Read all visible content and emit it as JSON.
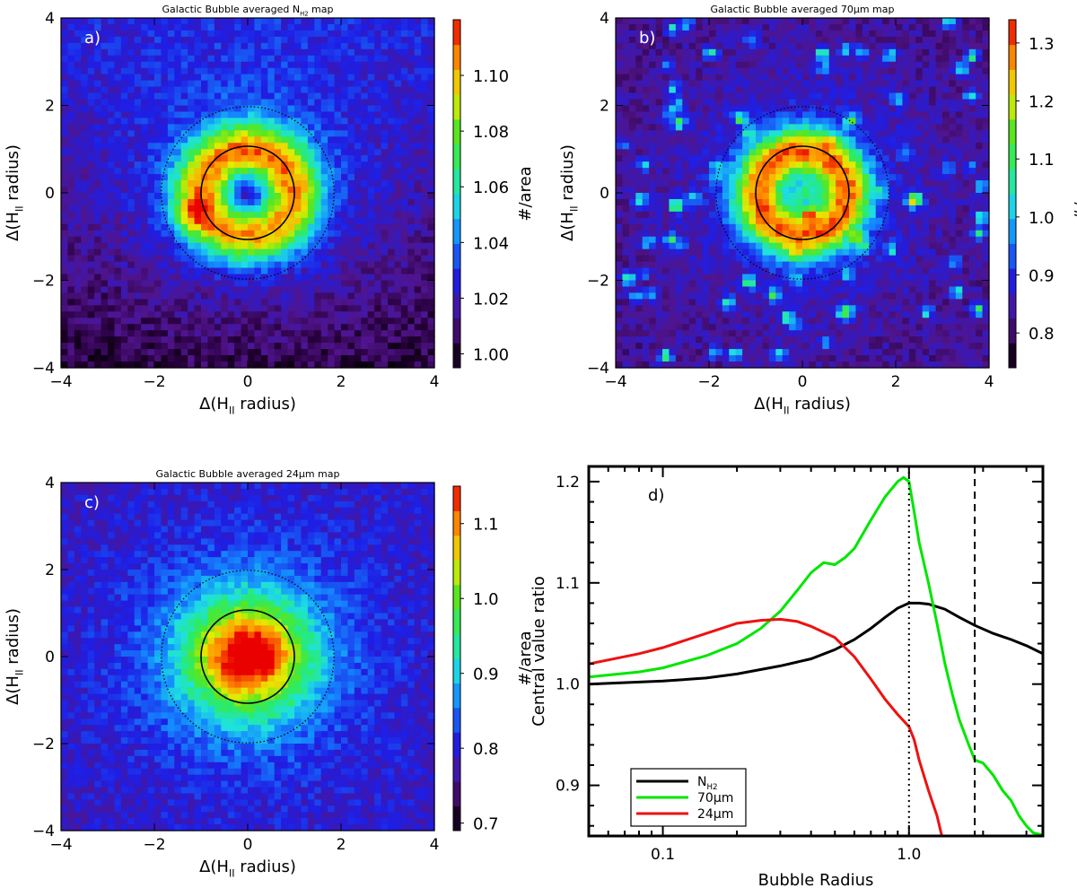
{
  "chart_data": [
    {
      "id": "a",
      "type": "heatmap",
      "panel_label": "a)",
      "title": "Galactic Bubble averaged N",
      "title_sub": "H2",
      "title_suffix": " map",
      "xlabel": "Δ(H",
      "xlabel_sub": "II",
      "xlabel_suffix": " radius)",
      "ylabel": "Δ(H",
      "ylabel_sub": "II",
      "ylabel_suffix": " radius)",
      "xlim": [
        -4,
        4
      ],
      "ylim": [
        -4,
        4
      ],
      "xticks": [
        -4,
        -2,
        0,
        2,
        4
      ],
      "yticks": [
        -4,
        -2,
        0,
        2,
        4
      ],
      "colorbar": {
        "label": "#/area",
        "range": [
          0.995,
          1.12
        ],
        "ticks": [
          "1.00",
          "1.02",
          "1.04",
          "1.06",
          "1.08",
          "1.10"
        ]
      },
      "circles": [
        {
          "r": 1.0,
          "style": "solid"
        },
        {
          "r": 1.85,
          "style": "dotted"
        }
      ],
      "field": {
        "background": 1.015,
        "peak": 1.085,
        "center": 1.02,
        "ring_r": 1.0,
        "ring_width": 0.6,
        "halo": 0.025,
        "hotspot": {
          "x": -1.2,
          "y": -0.5,
          "value": 1.115
        },
        "top_bias": 0.012,
        "seed": 11
      }
    },
    {
      "id": "b",
      "type": "heatmap",
      "panel_label": "b)",
      "title": "Galactic Bubble averaged 70μm map",
      "xlabel": "Δ(H",
      "xlabel_sub": "II",
      "xlabel_suffix": " radius)",
      "ylabel": "Δ(H",
      "ylabel_sub": "II",
      "ylabel_suffix": " radius)",
      "xlim": [
        -4,
        4
      ],
      "ylim": [
        -4,
        4
      ],
      "xticks": [
        -4,
        -2,
        0,
        2,
        4
      ],
      "yticks": [
        -4,
        -2,
        0,
        2,
        4
      ],
      "colorbar": {
        "label": "#/area",
        "range": [
          0.74,
          1.34
        ],
        "ticks": [
          "0.8",
          "0.9",
          "1.0",
          "1.1",
          "1.2",
          "1.3"
        ]
      },
      "circles": [
        {
          "r": 1.0,
          "style": "solid"
        },
        {
          "r": 1.85,
          "style": "dotted"
        }
      ],
      "field": {
        "background": 0.83,
        "peak": 1.22,
        "center": 1.08,
        "ring_r": 0.95,
        "ring_width": 0.55,
        "halo": 0.09,
        "spots": 70,
        "seed": 23
      }
    },
    {
      "id": "c",
      "type": "heatmap",
      "panel_label": "c)",
      "title": "Galactic Bubble averaged 24μm map",
      "xlabel": "Δ(H",
      "xlabel_sub": "II",
      "xlabel_suffix": " radius)",
      "ylabel": "Δ(H",
      "ylabel_sub": "II",
      "ylabel_suffix": " radius)",
      "xlim": [
        -4,
        4
      ],
      "ylim": [
        -4,
        4
      ],
      "xticks": [
        -4,
        -2,
        0,
        2,
        4
      ],
      "yticks": [
        -4,
        -2,
        0,
        2,
        4
      ],
      "colorbar": {
        "label": "#/area",
        "range": [
          0.69,
          1.15
        ],
        "ticks": [
          "0.7",
          "0.8",
          "0.9",
          "1.0",
          "1.1"
        ]
      },
      "circles": [
        {
          "r": 1.0,
          "style": "solid"
        },
        {
          "r": 1.85,
          "style": "dotted"
        }
      ],
      "field": {
        "background": 0.79,
        "peak": 1.08,
        "center": 1.1,
        "ring_r": 0.0,
        "ring_width": 1.2,
        "halo": 0.1,
        "hotspot": {
          "x": 0.3,
          "y": 0.1,
          "value": 1.14
        },
        "seed": 37
      }
    },
    {
      "id": "d",
      "type": "line",
      "panel_label": "d)",
      "xlabel": "Bubble Radius",
      "ylabel": "Central value ratio",
      "xscale": "log",
      "xlim": [
        0.05,
        3.5
      ],
      "ylim": [
        0.85,
        1.215
      ],
      "xticks": [
        0.1,
        1.0
      ],
      "xtick_labels": [
        "0.1",
        "1.0"
      ],
      "yticks": [
        0.9,
        1.0,
        1.1,
        1.2
      ],
      "ytick_labels": [
        "0.9",
        "1.0",
        "1.1",
        "1.2"
      ],
      "vlines": [
        {
          "x": 1.0,
          "style": "dotted"
        },
        {
          "x": 1.85,
          "style": "dashed"
        }
      ],
      "legend_position": "bottom-left",
      "series": [
        {
          "name": "N",
          "name_sub": "H2",
          "color": "#000000",
          "x": [
            0.05,
            0.08,
            0.1,
            0.15,
            0.2,
            0.3,
            0.4,
            0.5,
            0.6,
            0.7,
            0.8,
            0.9,
            1.0,
            1.1,
            1.2,
            1.4,
            1.6,
            1.85,
            2.2,
            2.6,
            3.0,
            3.5
          ],
          "y": [
            1.0,
            1.002,
            1.003,
            1.006,
            1.01,
            1.018,
            1.025,
            1.034,
            1.044,
            1.055,
            1.066,
            1.075,
            1.08,
            1.08,
            1.079,
            1.074,
            1.066,
            1.058,
            1.05,
            1.044,
            1.038,
            1.03
          ]
        },
        {
          "name": "70μm",
          "color": "#00e600",
          "x": [
            0.05,
            0.08,
            0.1,
            0.15,
            0.2,
            0.25,
            0.3,
            0.35,
            0.4,
            0.45,
            0.5,
            0.55,
            0.6,
            0.7,
            0.8,
            0.9,
            0.95,
            1.0,
            1.05,
            1.1,
            1.2,
            1.3,
            1.4,
            1.5,
            1.6,
            1.75,
            1.85,
            2.0,
            2.2,
            2.4,
            2.6,
            2.8,
            3.0,
            3.2,
            3.5
          ],
          "y": [
            1.007,
            1.012,
            1.016,
            1.028,
            1.04,
            1.055,
            1.072,
            1.092,
            1.11,
            1.12,
            1.118,
            1.125,
            1.134,
            1.162,
            1.185,
            1.2,
            1.204,
            1.2,
            1.17,
            1.14,
            1.1,
            1.06,
            1.02,
            0.99,
            0.965,
            0.94,
            0.925,
            0.922,
            0.91,
            0.895,
            0.885,
            0.87,
            0.86,
            0.853,
            0.851
          ]
        },
        {
          "name": "24μm",
          "color": "#ee1111",
          "x": [
            0.05,
            0.08,
            0.1,
            0.15,
            0.2,
            0.25,
            0.3,
            0.35,
            0.4,
            0.5,
            0.6,
            0.7,
            0.8,
            0.9,
            1.0,
            1.05,
            1.1,
            1.2,
            1.3,
            1.36
          ],
          "y": [
            1.02,
            1.03,
            1.036,
            1.05,
            1.06,
            1.063,
            1.064,
            1.062,
            1.057,
            1.046,
            1.027,
            1.005,
            0.985,
            0.97,
            0.958,
            0.945,
            0.925,
            0.895,
            0.87,
            0.85
          ]
        }
      ]
    }
  ]
}
